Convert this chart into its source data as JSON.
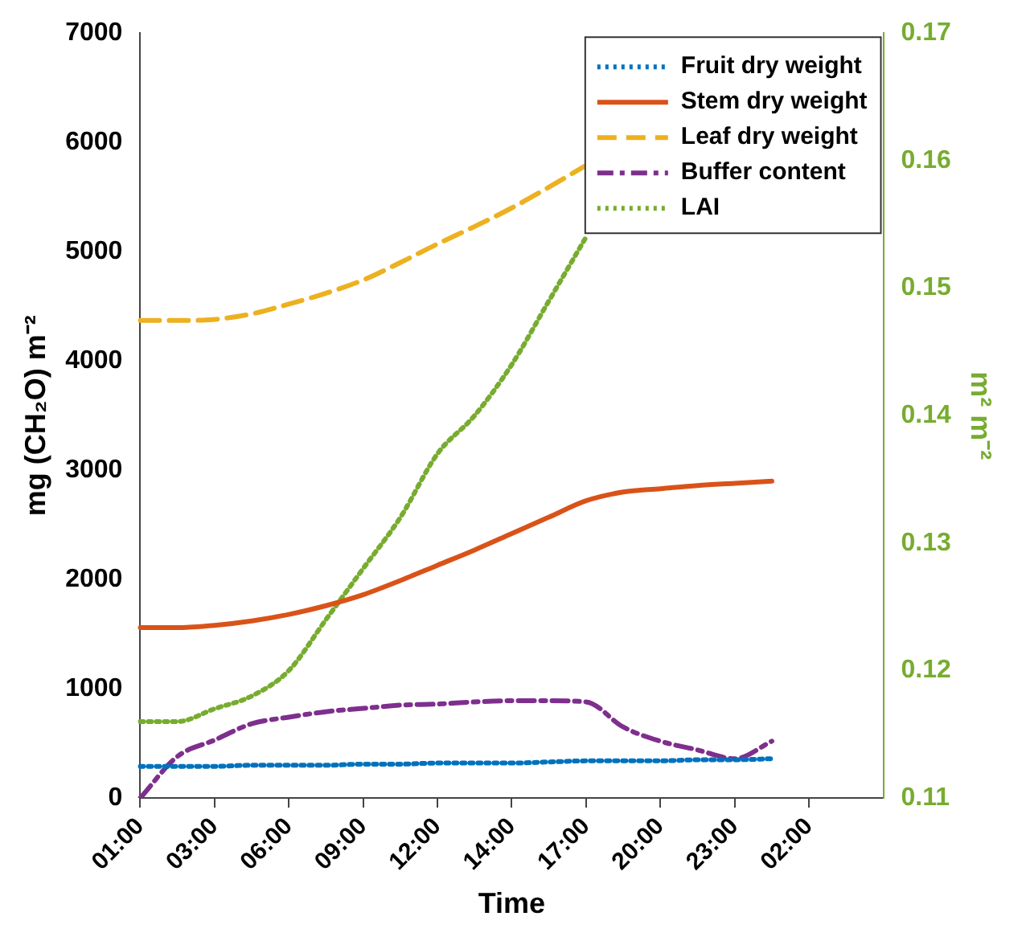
{
  "chart_data": {
    "type": "line",
    "xlabel": "Time",
    "ylabel": "mg (CH₂O) m⁻²",
    "y2label": "m² m⁻²",
    "categories": [
      "01:00",
      null,
      "03:00",
      null,
      "06:00",
      null,
      "09:00",
      null,
      "12:00",
      null,
      "14:00",
      null,
      "17:00",
      null,
      "20:00",
      null,
      "23:00",
      null,
      "02:00",
      null,
      null
    ],
    "ylim": [
      0,
      7000
    ],
    "yticks": [
      0,
      1000,
      2000,
      3000,
      4000,
      5000,
      6000,
      7000
    ],
    "y2lim": [
      0.11,
      0.17
    ],
    "y2ticks": [
      0.11,
      0.12,
      0.13,
      0.14,
      0.15,
      0.16,
      0.17
    ],
    "grid": false,
    "legend": "top right",
    "marker": "none",
    "series": [
      {
        "name": "Fruit dry weight",
        "color": "#0072bd",
        "line_style": "dotted",
        "values": [
          290,
          290,
          290,
          300,
          300,
          300,
          310,
          310,
          320,
          320,
          320,
          330,
          340,
          340,
          340,
          350,
          350,
          360,
          null,
          null,
          null
        ]
      },
      {
        "name": "Stem dry weight",
        "color": "#d95319",
        "line_style": "solid",
        "values": [
          1560,
          1560,
          1580,
          1620,
          1680,
          1760,
          1860,
          1990,
          2130,
          2270,
          2420,
          2570,
          2720,
          2800,
          2830,
          2860,
          2880,
          2900,
          null,
          null,
          null
        ]
      },
      {
        "name": "Leaf dry weight",
        "color": "#edb120",
        "line_style": "dashed",
        "values": [
          4370,
          4370,
          4380,
          4430,
          4520,
          4620,
          4740,
          4900,
          5070,
          5230,
          5400,
          5590,
          5790,
          null,
          null,
          null,
          null,
          null,
          null,
          null,
          null
        ]
      },
      {
        "name": "Buffer content",
        "color": "#7e2f8e",
        "line_style": "dashdot",
        "values": [
          0,
          380,
          530,
          680,
          740,
          790,
          820,
          850,
          860,
          880,
          890,
          890,
          880,
          650,
          520,
          440,
          360,
          520,
          null,
          null,
          null
        ]
      },
      {
        "name": "LAI",
        "color": "#77ac30",
        "line_style": "dotted",
        "axis": "y2",
        "values": [
          0.116,
          0.116,
          0.117,
          0.118,
          0.12,
          0.124,
          0.128,
          0.132,
          0.137,
          0.14,
          0.144,
          0.149,
          0.154,
          null,
          null,
          null,
          null,
          null,
          null,
          null,
          null
        ]
      }
    ]
  }
}
